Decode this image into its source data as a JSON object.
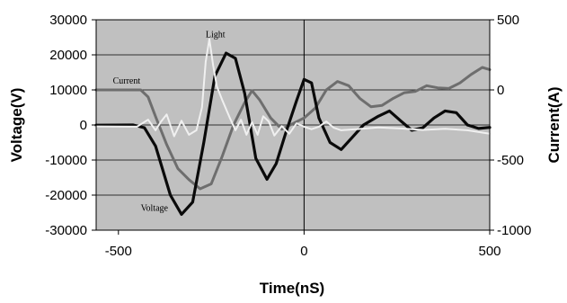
{
  "chart_data": {
    "type": "line",
    "title": "",
    "xlabel": "Time(nS)",
    "ylabel": "Voltage(V)",
    "y2label": "Current(A)",
    "xlim": [
      -560,
      500
    ],
    "ylim": [
      -30000,
      30000
    ],
    "y2lim": [
      -1000,
      500
    ],
    "x_ticks": [
      "-500",
      "0",
      "500"
    ],
    "y_ticks": [
      "30000",
      "20000",
      "10000",
      "0",
      "-10000",
      "-20000",
      "-30000"
    ],
    "y2_ticks": [
      "500",
      "0",
      "-500",
      "-1000"
    ],
    "plot_background": "#c0c0c0",
    "grid": "horizontal",
    "colors": {
      "voltage": "#0a0a0a",
      "current": "#6e6e6e",
      "light": "#f0f0f0"
    },
    "annotations": [
      {
        "text": "Light",
        "series": "Light"
      },
      {
        "text": "Current",
        "series": "Current"
      },
      {
        "text": "Voltage",
        "series": "Voltage"
      }
    ],
    "series": [
      {
        "name": "Voltage",
        "axis": "left",
        "x": [
          -560,
          -460,
          -430,
          -400,
          -360,
          -330,
          -300,
          -270,
          -240,
          -210,
          -185,
          -160,
          -130,
          -100,
          -75,
          -50,
          -20,
          0,
          20,
          40,
          70,
          100,
          130,
          160,
          200,
          230,
          260,
          290,
          320,
          350,
          380,
          410,
          440,
          470,
          500
        ],
        "y": [
          -50,
          0,
          -800,
          -6000,
          -20000,
          -25500,
          -22000,
          -5000,
          14000,
          20500,
          19000,
          9000,
          -9500,
          -15500,
          -11000,
          -2500,
          7000,
          13000,
          12000,
          2000,
          -5000,
          -7000,
          -3500,
          0,
          2500,
          4000,
          1200,
          -1500,
          -800,
          2000,
          4000,
          3500,
          0,
          -1000,
          -700
        ]
      },
      {
        "name": "Current",
        "axis": "right",
        "x": [
          -560,
          -440,
          -420,
          -400,
          -370,
          -340,
          -310,
          -280,
          -250,
          -220,
          -190,
          -160,
          -140,
          -120,
          -90,
          -60,
          -30,
          0,
          30,
          60,
          90,
          120,
          150,
          180,
          210,
          240,
          270,
          300,
          330,
          360,
          390,
          420,
          450,
          480,
          500
        ],
        "y": [
          0,
          0,
          -50,
          -190,
          -390,
          -560,
          -640,
          -705,
          -670,
          -470,
          -250,
          -90,
          -5,
          -70,
          -200,
          -280,
          -240,
          -200,
          -130,
          0,
          60,
          30,
          -60,
          -120,
          -110,
          -60,
          -20,
          -10,
          30,
          15,
          10,
          50,
          110,
          160,
          145
        ]
      },
      {
        "name": "Light",
        "axis": "left",
        "x": [
          -560,
          -450,
          -420,
          -400,
          -385,
          -370,
          -350,
          -330,
          -310,
          -290,
          -275,
          -265,
          -255,
          -245,
          -235,
          -220,
          -200,
          -185,
          -170,
          -155,
          -140,
          -125,
          -110,
          -95,
          -80,
          -60,
          -40,
          -20,
          0,
          20,
          40,
          60,
          80,
          100,
          140,
          200,
          260,
          320,
          380,
          440,
          500
        ],
        "y": [
          -400,
          -500,
          1500,
          -1500,
          1000,
          3000,
          -3200,
          1200,
          -2800,
          -1500,
          5000,
          18000,
          24500,
          17000,
          11000,
          7000,
          2000,
          -1500,
          1500,
          -2800,
          800,
          -2800,
          2500,
          1000,
          -3000,
          -300,
          -2500,
          500,
          -500,
          -1200,
          -500,
          1000,
          -800,
          -1500,
          -1200,
          -700,
          -1000,
          -1400,
          -1100,
          -1500,
          -2500
        ]
      }
    ]
  }
}
